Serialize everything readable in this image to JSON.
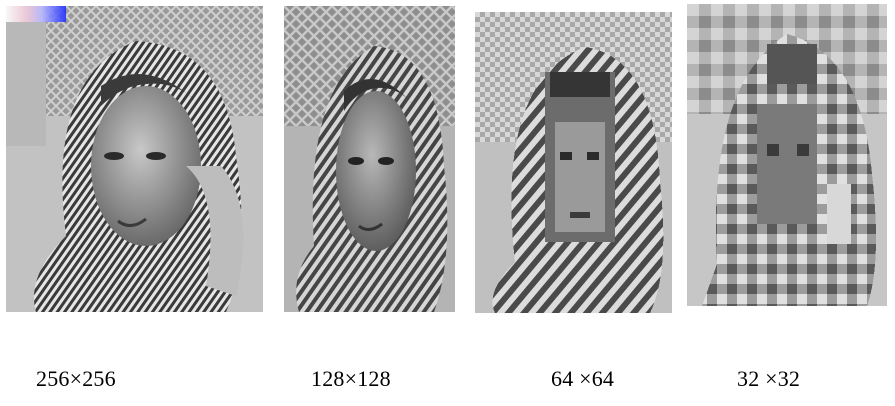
{
  "images": [
    {
      "caption": "256×256",
      "resolution": 256
    },
    {
      "caption": "128×128",
      "resolution": 128
    },
    {
      "caption": "64 ×64",
      "resolution": 64
    },
    {
      "caption": "32 ×32",
      "resolution": 32
    }
  ]
}
